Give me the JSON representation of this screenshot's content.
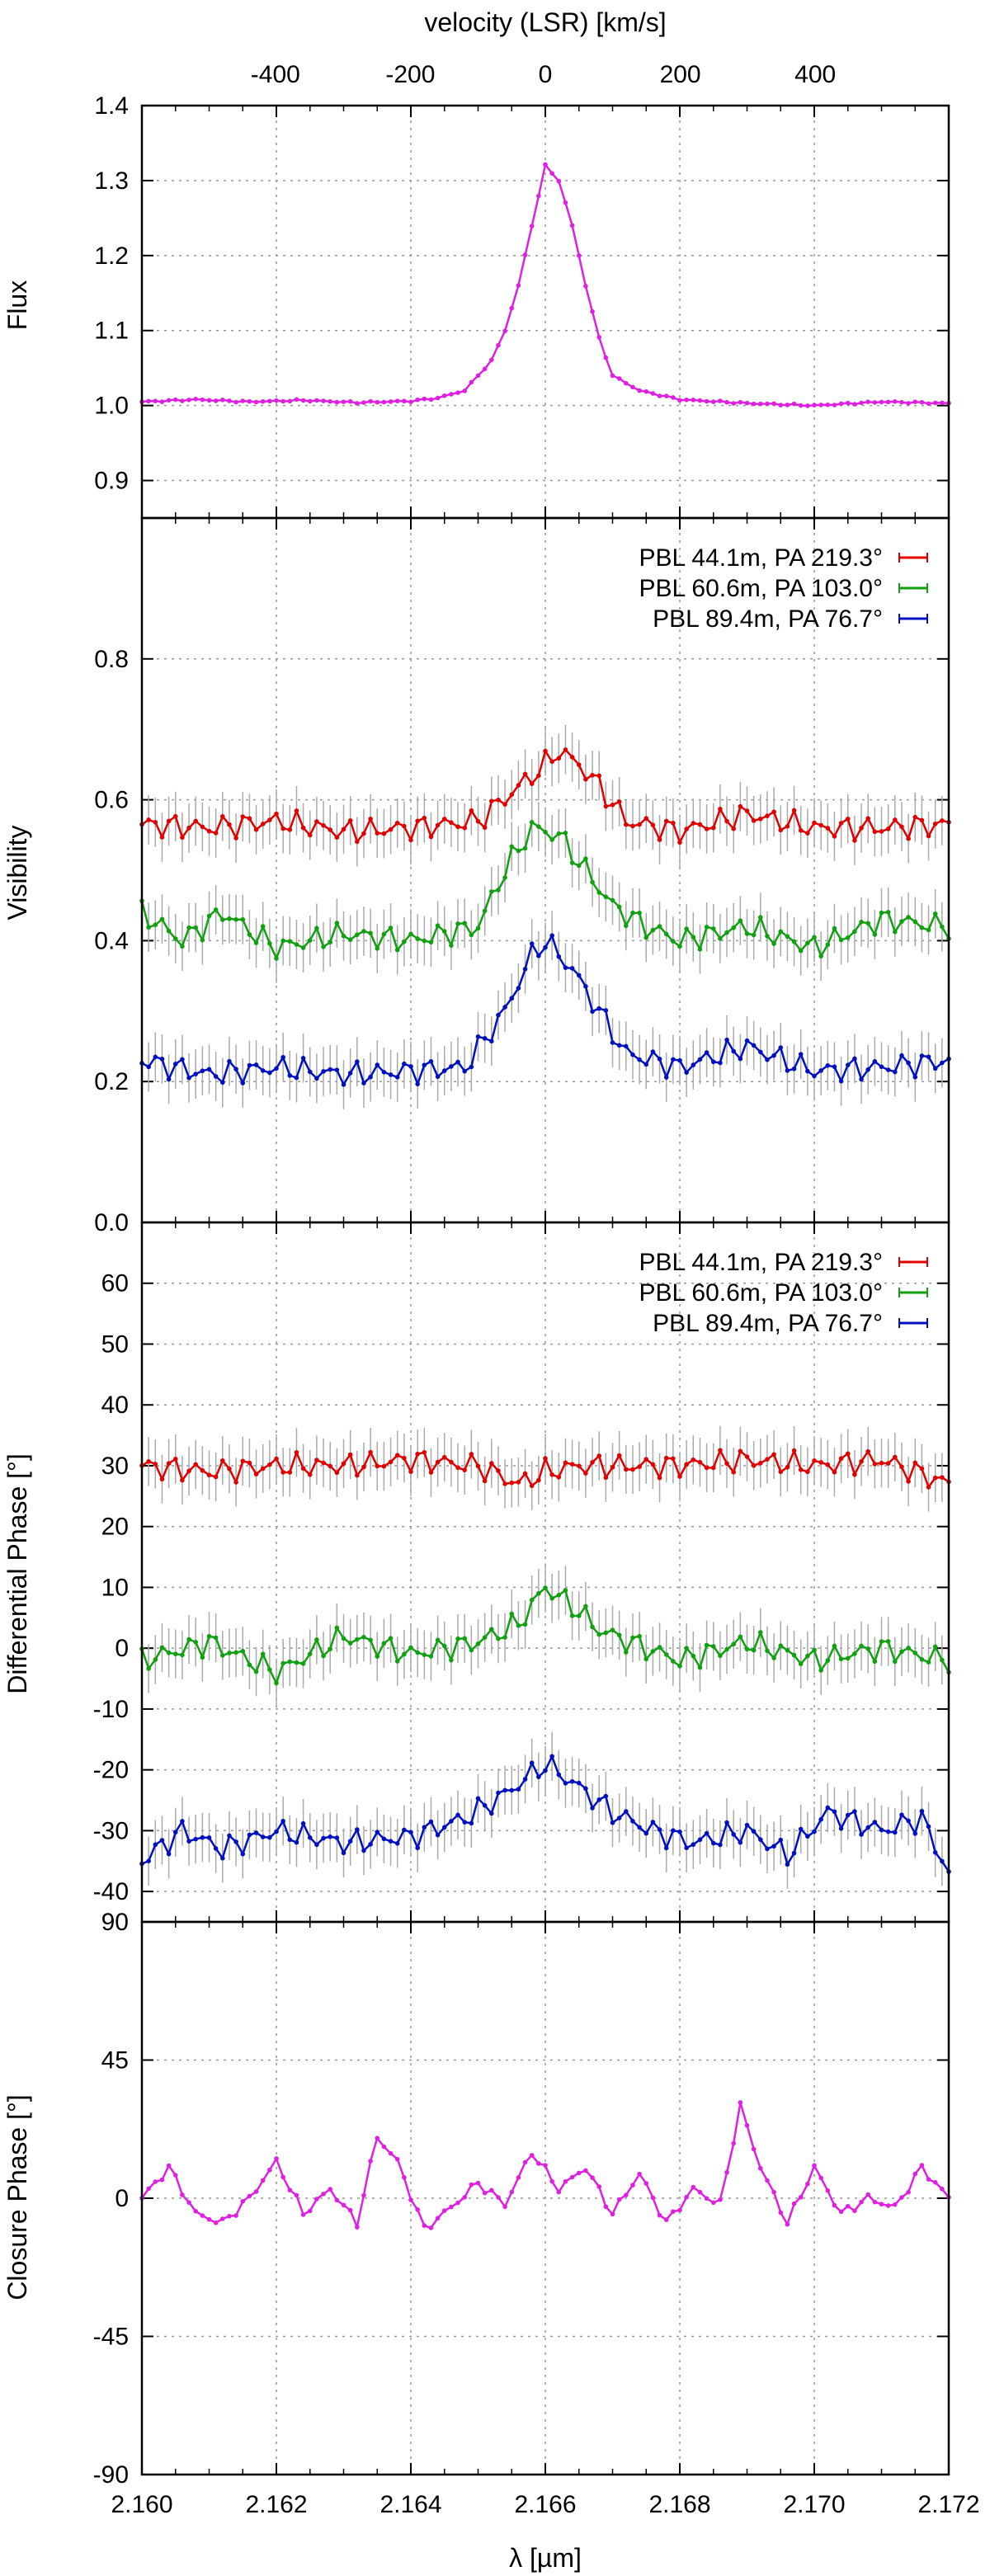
{
  "chart_data": [
    {
      "type": "line",
      "panel": "flux",
      "ylabel": "Flux",
      "top_axis_label": "velocity (LSR) [km/s]",
      "top_ticks": [
        "-400",
        "-200",
        "0",
        "200",
        "400"
      ],
      "top_tick_values": [
        -400,
        -200,
        0,
        200,
        400
      ],
      "xlim": [
        2.16,
        2.172
      ],
      "ylim": [
        0.85,
        1.4
      ],
      "yticks": [
        "0.9",
        "1.0",
        "1.1",
        "1.2",
        "1.3",
        "1.4"
      ],
      "ytick_values": [
        0.9,
        1.0,
        1.1,
        1.2,
        1.3,
        1.4
      ],
      "grid": true,
      "colors": {
        "flux": "#e020e0"
      },
      "series": [
        {
          "x": [
            2.16,
            2.1608,
            2.1616,
            2.1624,
            2.1632,
            2.164,
            2.1644,
            2.1648,
            2.1652,
            2.1654,
            2.1656,
            2.1658,
            2.166,
            2.1662,
            2.1664,
            2.1666,
            2.1668,
            2.167,
            2.1674,
            2.168,
            2.169,
            2.17,
            2.171,
            2.172
          ],
          "values": [
            1.005,
            1.008,
            1.005,
            1.007,
            1.004,
            1.006,
            1.01,
            1.02,
            1.06,
            1.1,
            1.16,
            1.24,
            1.32,
            1.3,
            1.24,
            1.16,
            1.09,
            1.04,
            1.02,
            1.008,
            1.003,
            1.0,
            1.005,
            1.003
          ]
        }
      ]
    },
    {
      "type": "line",
      "panel": "visibility",
      "ylabel": "Visibility",
      "xlim": [
        2.16,
        2.172
      ],
      "ylim": [
        0.0,
        1.0
      ],
      "yticks": [
        "0.0",
        "0.2",
        "0.4",
        "0.6",
        "0.8"
      ],
      "ytick_values": [
        0.0,
        0.2,
        0.4,
        0.6,
        0.8
      ],
      "grid": true,
      "legend_position": "top-right",
      "series": [
        {
          "name": "PBL 44.1m, PA 219.3°",
          "color": "#e00000",
          "x": [
            2.16,
            2.161,
            2.162,
            2.163,
            2.164,
            2.165,
            2.1655,
            2.166,
            2.1662,
            2.1665,
            2.1668,
            2.1672,
            2.168,
            2.169,
            2.17,
            2.171,
            2.172
          ],
          "values": [
            0.565,
            0.56,
            0.57,
            0.555,
            0.56,
            0.57,
            0.61,
            0.65,
            0.67,
            0.65,
            0.62,
            0.57,
            0.555,
            0.58,
            0.56,
            0.56,
            0.565
          ]
        },
        {
          "name": "PBL 60.6m, PA 103.0°",
          "color": "#10a010",
          "x": [
            2.16,
            2.1606,
            2.1612,
            2.162,
            2.163,
            2.164,
            2.165,
            2.1654,
            2.1658,
            2.1662,
            2.1666,
            2.167,
            2.1675,
            2.168,
            2.169,
            2.17,
            2.171,
            2.172
          ],
          "values": [
            0.44,
            0.4,
            0.44,
            0.39,
            0.41,
            0.4,
            0.42,
            0.5,
            0.56,
            0.55,
            0.5,
            0.45,
            0.42,
            0.4,
            0.42,
            0.39,
            0.43,
            0.42
          ]
        },
        {
          "name": "PBL 89.4m, PA  76.7°",
          "color": "#0010c0",
          "x": [
            2.16,
            2.161,
            2.162,
            2.163,
            2.164,
            2.1648,
            2.1654,
            2.1658,
            2.166,
            2.1664,
            2.1668,
            2.1672,
            2.168,
            2.169,
            2.17,
            2.171,
            2.172
          ],
          "values": [
            0.23,
            0.21,
            0.22,
            0.21,
            0.215,
            0.22,
            0.3,
            0.38,
            0.4,
            0.36,
            0.3,
            0.24,
            0.22,
            0.25,
            0.215,
            0.22,
            0.23
          ]
        }
      ]
    },
    {
      "type": "line",
      "panel": "differential-phase",
      "ylabel": "Differential Phase [°]",
      "xlim": [
        2.16,
        2.172
      ],
      "ylim": [
        -45,
        70
      ],
      "yticks": [
        "-40",
        "-30",
        "-20",
        "-10",
        "0",
        "10",
        "20",
        "30",
        "40",
        "50",
        "60"
      ],
      "ytick_values": [
        -40,
        -30,
        -20,
        -10,
        0,
        10,
        20,
        30,
        40,
        50,
        60
      ],
      "grid": true,
      "legend_position": "top-right",
      "series": [
        {
          "name": "PBL 44.1m, PA 219.3°",
          "color": "#e00000",
          "x": [
            2.16,
            2.161,
            2.162,
            2.163,
            2.164,
            2.165,
            2.1656,
            2.166,
            2.1665,
            2.167,
            2.168,
            2.169,
            2.17,
            2.171,
            2.172
          ],
          "values": [
            30,
            29,
            30,
            30,
            31,
            30,
            27,
            29,
            30,
            30,
            30,
            31,
            30,
            31,
            27
          ]
        },
        {
          "name": "PBL 60.6m, PA 103.0°",
          "color": "#10a010",
          "x": [
            2.16,
            2.161,
            2.162,
            2.163,
            2.164,
            2.165,
            2.1656,
            2.166,
            2.1664,
            2.1668,
            2.1675,
            2.168,
            2.169,
            2.17,
            2.171,
            2.172
          ],
          "values": [
            -2,
            1,
            -4,
            2,
            -1,
            1,
            4,
            10,
            7,
            3,
            0,
            -2,
            1,
            -2,
            0,
            -2
          ]
        },
        {
          "name": "PBL 89.4m, PA  76.7°",
          "color": "#0010c0",
          "x": [
            2.16,
            2.1606,
            2.1612,
            2.162,
            2.163,
            2.164,
            2.1648,
            2.1654,
            2.166,
            2.1664,
            2.167,
            2.1676,
            2.1682,
            2.169,
            2.1696,
            2.1702,
            2.171,
            2.1716,
            2.172
          ],
          "values": [
            -35,
            -30,
            -33,
            -30,
            -32,
            -31,
            -28,
            -24,
            -19,
            -22,
            -27,
            -30,
            -32,
            -30,
            -34,
            -27,
            -30,
            -28,
            -37
          ]
        }
      ]
    },
    {
      "type": "line",
      "panel": "closure-phase",
      "ylabel": "Closure Phase [°]",
      "xlabel": "λ [µm]",
      "xlim": [
        2.16,
        2.172
      ],
      "xticks": [
        "2.160",
        "2.162",
        "2.164",
        "2.166",
        "2.168",
        "2.170",
        "2.172"
      ],
      "xtick_values": [
        2.16,
        2.162,
        2.164,
        2.166,
        2.168,
        2.17,
        2.172
      ],
      "ylim": [
        -90,
        90
      ],
      "yticks": [
        "-90",
        "-45",
        "0",
        "45",
        "90"
      ],
      "ytick_values": [
        -90,
        -45,
        0,
        45,
        90
      ],
      "grid": true,
      "colors": {
        "closure": "#e020e0"
      },
      "series": [
        {
          "x": [
            2.16,
            2.1604,
            2.1608,
            2.1612,
            2.1616,
            2.162,
            2.1624,
            2.1628,
            2.1632,
            2.1635,
            2.1638,
            2.1642,
            2.1646,
            2.165,
            2.1654,
            2.1658,
            2.1662,
            2.1666,
            2.167,
            2.1674,
            2.1678,
            2.1682,
            2.1686,
            2.1689,
            2.1692,
            2.1696,
            2.17,
            2.1704,
            2.1708,
            2.1712,
            2.1716,
            2.172
          ],
          "values": [
            0,
            10,
            -5,
            -8,
            0,
            12,
            -5,
            3,
            -8,
            20,
            12,
            -10,
            -3,
            5,
            -2,
            15,
            3,
            10,
            -5,
            8,
            -8,
            3,
            -2,
            30,
            10,
            -8,
            10,
            -5,
            0,
            -3,
            10,
            0
          ]
        }
      ]
    }
  ]
}
